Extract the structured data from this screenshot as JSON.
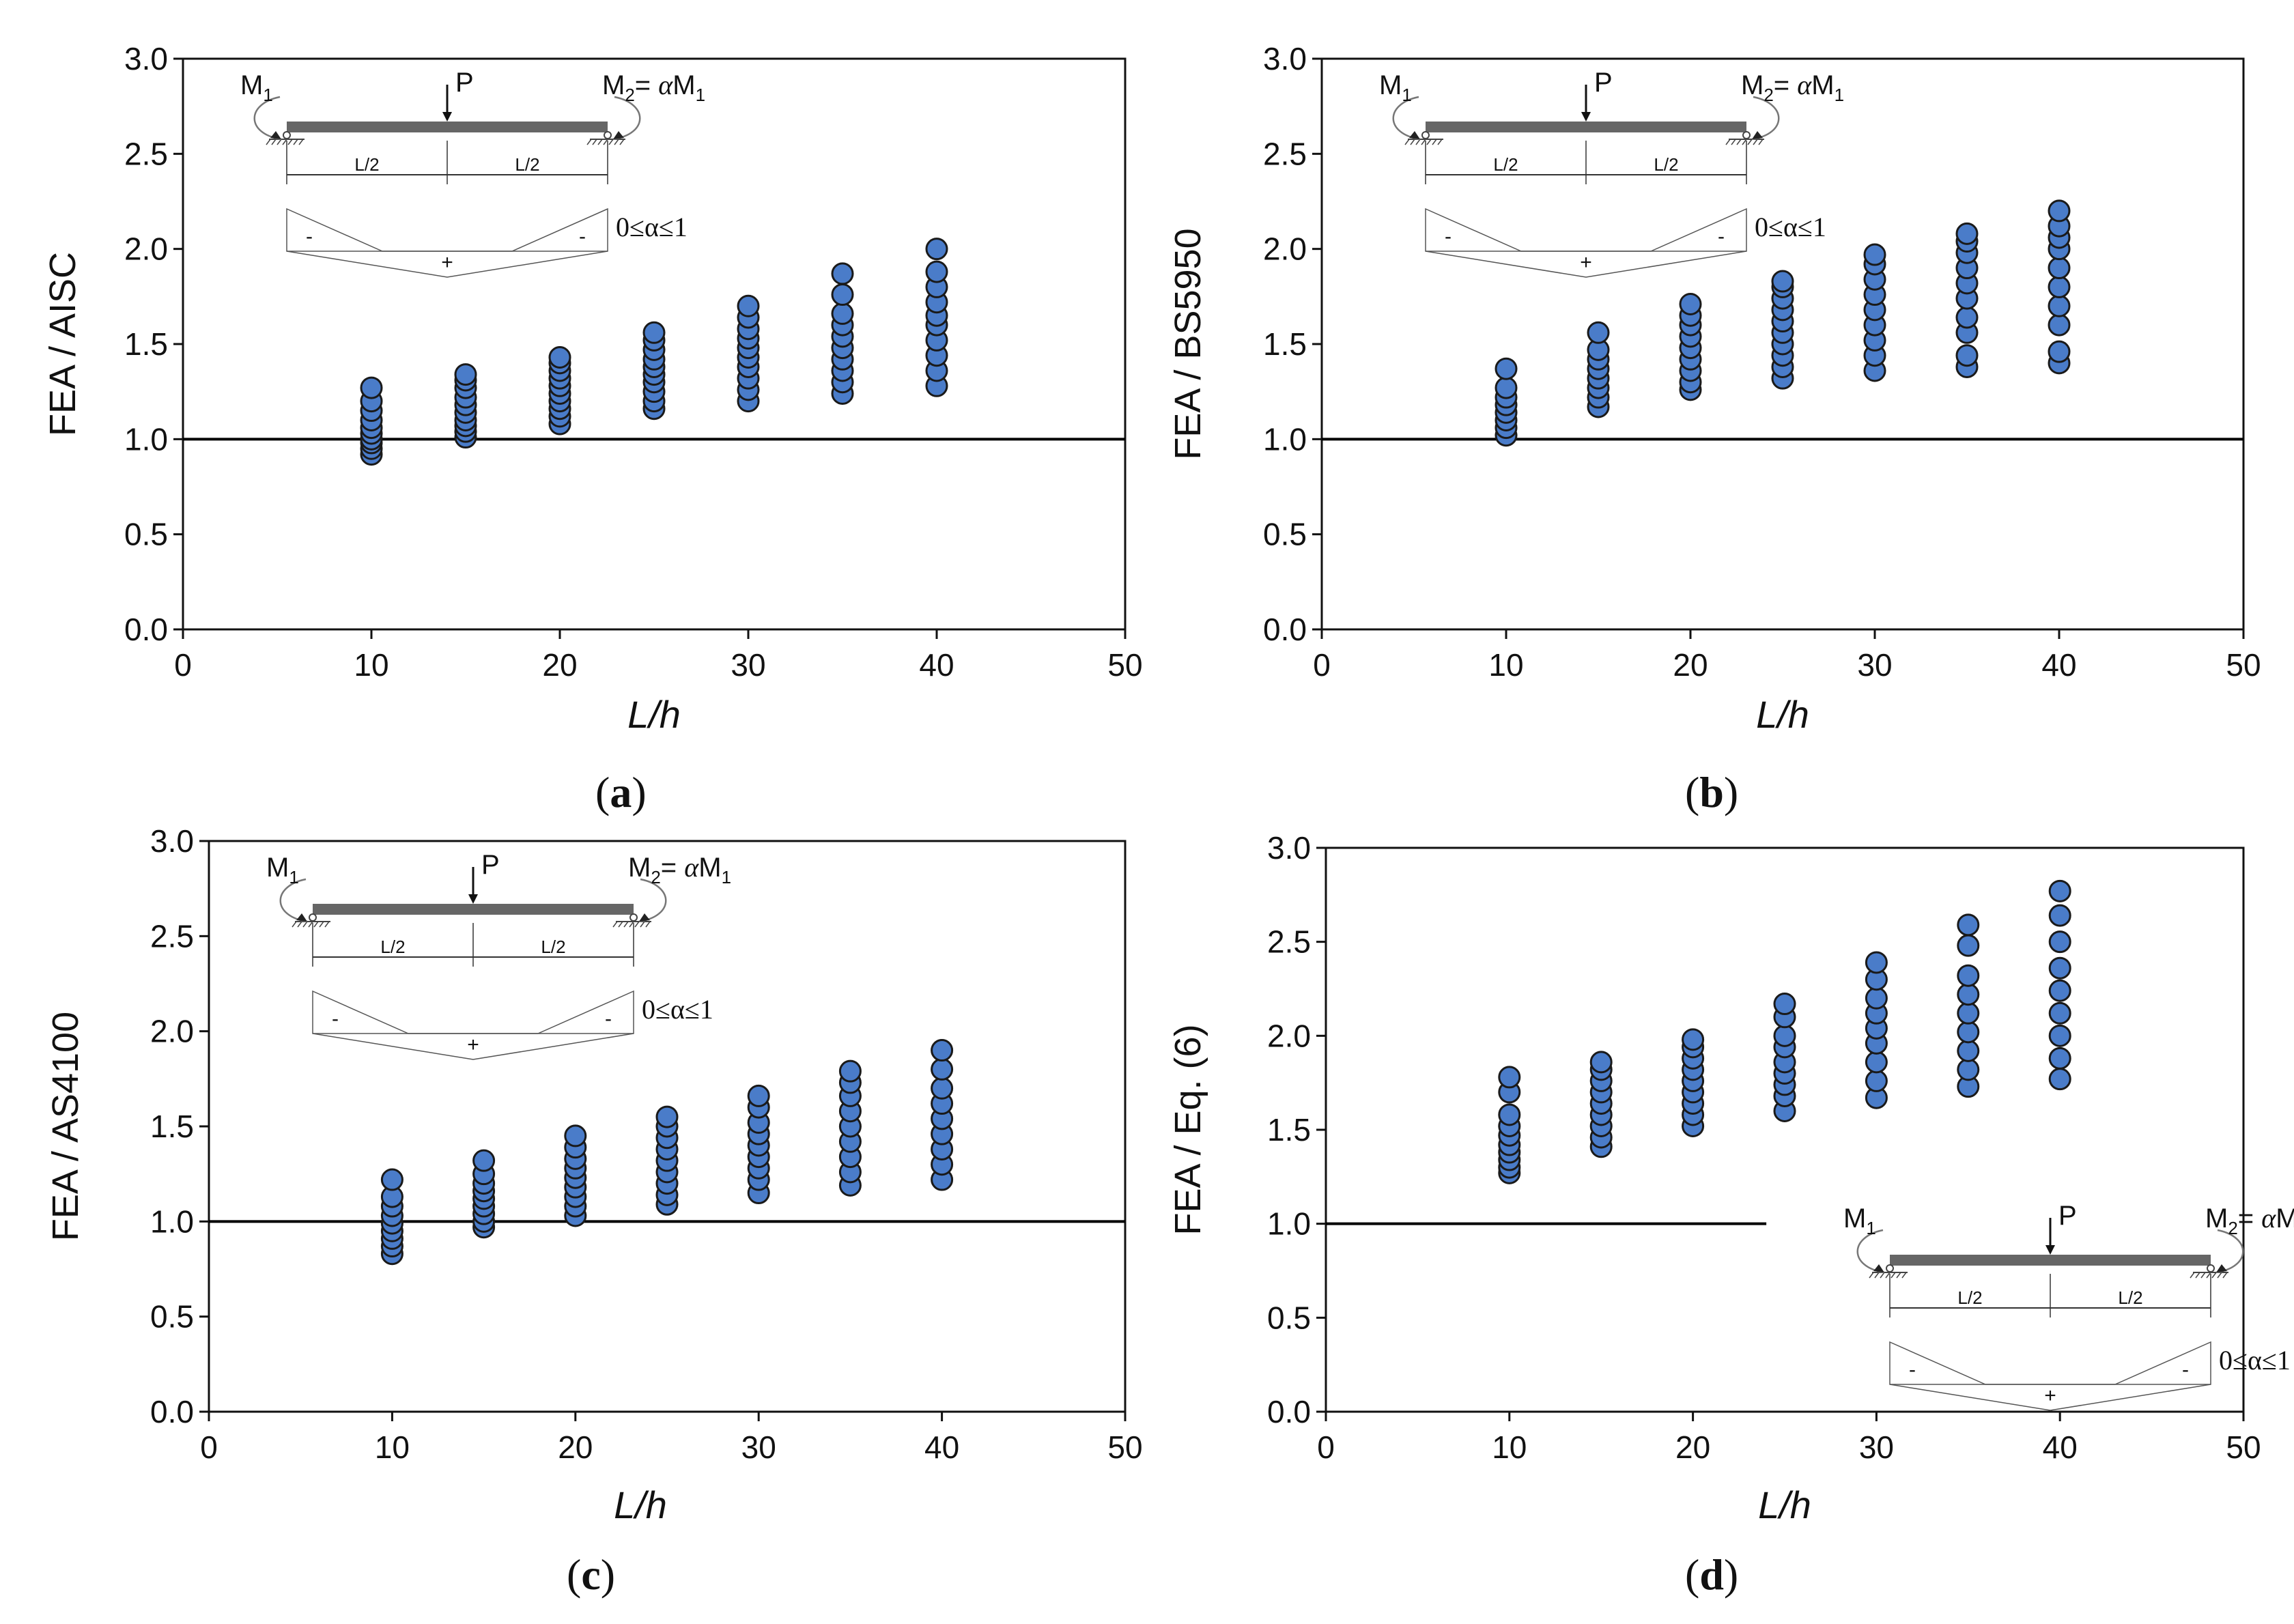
{
  "chart_data": [
    {
      "type": "scatter",
      "panel": "(a)",
      "caption_letter": "a",
      "ylabel": "FEA / AISC",
      "xlabel": "L/h",
      "xlim": [
        0,
        50
      ],
      "ylim": [
        0,
        3
      ],
      "xticks": [
        "0",
        "10",
        "20",
        "30",
        "40",
        "50"
      ],
      "yticks": [
        "0.0",
        "0.5",
        "1.0",
        "1.5",
        "2.0",
        "2.5",
        "3.0"
      ],
      "reference_line": {
        "y": 1.0
      },
      "marker_color": "#4a7cc9",
      "points": [
        {
          "x": 10,
          "y": [
            0.92,
            0.95,
            0.98,
            1.0,
            1.03,
            1.06,
            1.1,
            1.15,
            1.2,
            1.27
          ]
        },
        {
          "x": 15,
          "y": [
            1.01,
            1.04,
            1.07,
            1.1,
            1.14,
            1.18,
            1.22,
            1.27,
            1.31,
            1.34
          ]
        },
        {
          "x": 20,
          "y": [
            1.08,
            1.12,
            1.16,
            1.2,
            1.24,
            1.28,
            1.32,
            1.36,
            1.4,
            1.43
          ]
        },
        {
          "x": 25,
          "y": [
            1.16,
            1.2,
            1.25,
            1.3,
            1.34,
            1.38,
            1.42,
            1.47,
            1.52,
            1.56
          ]
        },
        {
          "x": 30,
          "y": [
            1.2,
            1.26,
            1.32,
            1.38,
            1.43,
            1.48,
            1.53,
            1.58,
            1.64,
            1.7
          ]
        },
        {
          "x": 35,
          "y": [
            1.24,
            1.3,
            1.36,
            1.42,
            1.48,
            1.54,
            1.6,
            1.66,
            1.76,
            1.87
          ]
        },
        {
          "x": 40,
          "y": [
            1.28,
            1.36,
            1.44,
            1.52,
            1.6,
            1.65,
            1.72,
            1.8,
            1.88,
            2.0
          ]
        }
      ]
    },
    {
      "type": "scatter",
      "panel": "(b)",
      "caption_letter": "b",
      "ylabel": "FEA / BS5950",
      "xlabel": "L/h",
      "xlim": [
        0,
        50
      ],
      "ylim": [
        0,
        3
      ],
      "xticks": [
        "0",
        "10",
        "20",
        "30",
        "40",
        "50"
      ],
      "yticks": [
        "0.0",
        "0.5",
        "1.0",
        "1.5",
        "2.0",
        "2.5",
        "3.0"
      ],
      "reference_line": {
        "y": 1.0
      },
      "marker_color": "#4a7cc9",
      "points": [
        {
          "x": 10,
          "y": [
            1.02,
            1.06,
            1.1,
            1.14,
            1.18,
            1.22,
            1.27,
            1.37
          ]
        },
        {
          "x": 15,
          "y": [
            1.17,
            1.22,
            1.27,
            1.32,
            1.37,
            1.42,
            1.47,
            1.56
          ]
        },
        {
          "x": 20,
          "y": [
            1.26,
            1.3,
            1.36,
            1.42,
            1.48,
            1.54,
            1.6,
            1.65,
            1.71
          ]
        },
        {
          "x": 25,
          "y": [
            1.32,
            1.38,
            1.44,
            1.5,
            1.56,
            1.62,
            1.68,
            1.74,
            1.8,
            1.83
          ]
        },
        {
          "x": 30,
          "y": [
            1.36,
            1.44,
            1.52,
            1.6,
            1.68,
            1.76,
            1.84,
            1.92,
            1.97
          ]
        },
        {
          "x": 35,
          "y": [
            1.38,
            1.44,
            1.56,
            1.64,
            1.74,
            1.82,
            1.9,
            1.98,
            2.04,
            2.08
          ]
        },
        {
          "x": 40,
          "y": [
            1.4,
            1.46,
            1.6,
            1.7,
            1.8,
            1.9,
            2.0,
            2.06,
            2.12,
            2.2
          ]
        }
      ]
    },
    {
      "type": "scatter",
      "panel": "(c)",
      "caption_letter": "c",
      "ylabel": "FEA / AS4100",
      "xlabel": "L/h",
      "xlim": [
        0,
        50
      ],
      "ylim": [
        0,
        3
      ],
      "xticks": [
        "0",
        "10",
        "20",
        "30",
        "40",
        "50"
      ],
      "yticks": [
        "0.0",
        "0.5",
        "1.0",
        "1.5",
        "2.0",
        "2.5",
        "3.0"
      ],
      "reference_line": {
        "y": 1.0
      },
      "marker_color": "#4a7cc9",
      "points": [
        {
          "x": 10,
          "y": [
            0.83,
            0.87,
            0.91,
            0.95,
            0.99,
            1.03,
            1.08,
            1.13,
            1.22
          ]
        },
        {
          "x": 15,
          "y": [
            0.97,
            1.0,
            1.04,
            1.08,
            1.12,
            1.16,
            1.2,
            1.25,
            1.32
          ]
        },
        {
          "x": 20,
          "y": [
            1.03,
            1.08,
            1.13,
            1.18,
            1.23,
            1.28,
            1.33,
            1.39,
            1.45
          ]
        },
        {
          "x": 25,
          "y": [
            1.09,
            1.14,
            1.2,
            1.26,
            1.32,
            1.38,
            1.44,
            1.5,
            1.55
          ]
        },
        {
          "x": 30,
          "y": [
            1.15,
            1.22,
            1.28,
            1.34,
            1.4,
            1.46,
            1.52,
            1.6,
            1.66
          ]
        },
        {
          "x": 35,
          "y": [
            1.19,
            1.26,
            1.34,
            1.42,
            1.5,
            1.58,
            1.66,
            1.73,
            1.79
          ]
        },
        {
          "x": 40,
          "y": [
            1.22,
            1.3,
            1.38,
            1.46,
            1.54,
            1.62,
            1.7,
            1.8,
            1.9
          ]
        }
      ]
    },
    {
      "type": "scatter",
      "panel": "(d)",
      "caption_letter": "d",
      "ylabel": "FEA / Eq. (6)",
      "xlabel": "L/h",
      "xlim": [
        0,
        50
      ],
      "ylim": [
        0,
        3
      ],
      "xticks": [
        "0",
        "10",
        "20",
        "30",
        "40",
        "50"
      ],
      "yticks": [
        "0.0",
        "0.5",
        "1.0",
        "1.5",
        "2.0",
        "2.5",
        "3.0"
      ],
      "reference_line": {
        "y": 1.0,
        "x_end": 24
      },
      "marker_color": "#4a7cc9",
      "points": [
        {
          "x": 10,
          "y": [
            1.27,
            1.3,
            1.34,
            1.38,
            1.42,
            1.47,
            1.52,
            1.58,
            1.7,
            1.78
          ]
        },
        {
          "x": 15,
          "y": [
            1.41,
            1.46,
            1.52,
            1.58,
            1.64,
            1.7,
            1.76,
            1.82,
            1.86
          ]
        },
        {
          "x": 20,
          "y": [
            1.52,
            1.58,
            1.64,
            1.7,
            1.76,
            1.82,
            1.88,
            1.94,
            1.98
          ]
        },
        {
          "x": 25,
          "y": [
            1.6,
            1.68,
            1.74,
            1.8,
            1.86,
            1.94,
            2.0,
            2.1,
            2.17
          ]
        },
        {
          "x": 30,
          "y": [
            1.67,
            1.76,
            1.86,
            1.96,
            2.04,
            2.12,
            2.2,
            2.3,
            2.39
          ]
        },
        {
          "x": 35,
          "y": [
            1.73,
            1.82,
            1.92,
            2.02,
            2.12,
            2.22,
            2.32,
            2.48,
            2.59
          ]
        },
        {
          "x": 40,
          "y": [
            1.77,
            1.88,
            2.0,
            2.12,
            2.24,
            2.36,
            2.5,
            2.64,
            2.77
          ]
        }
      ]
    }
  ],
  "inset": {
    "m1": "M",
    "m1_sub": "1",
    "load": "P",
    "m2": "M",
    "m2_sub": "2",
    "m2_eq": "= ",
    "alpha": "α",
    "m2_tail": "M",
    "m2_tail_sub": "1",
    "half_left": "L/2",
    "half_right": "L/2",
    "sign_neg_left": "-",
    "sign_pos": "+",
    "sign_neg_right": "-",
    "condition": "0≤α≤1"
  },
  "captions": {
    "open": "(",
    "close": ")"
  }
}
